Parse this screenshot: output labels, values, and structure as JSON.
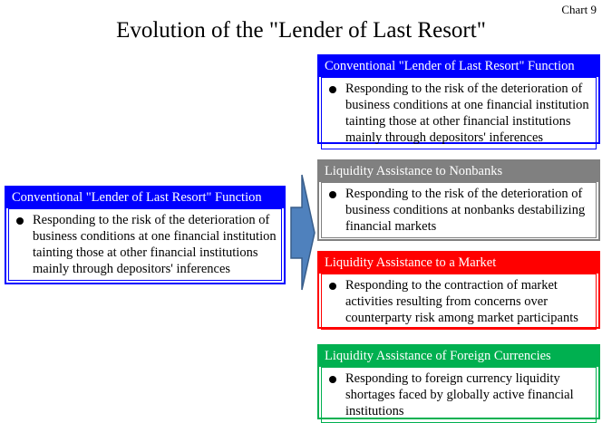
{
  "chart_label": "Chart 9",
  "title": "Evolution of the \"Lender of Last Resort\"",
  "left_box": {
    "header": "Conventional \"Lender of Last Resort\" Function",
    "text": "Responding to the risk of the deterioration of business conditions at one financial institution tainting those at other financial institutions mainly through depositors' inferences",
    "color": "#0000ff"
  },
  "right_boxes": [
    {
      "header": "Conventional \"Lender of Last Resort\" Function",
      "text": "Responding to the risk of the deterioration of business conditions at one financial institution tainting those at other financial institutions mainly through depositors' inferences",
      "color": "#0000ff"
    },
    {
      "header": "Liquidity Assistance to Nonbanks",
      "text": "Responding to the risk of the deterioration of business conditions at nonbanks destabilizing financial markets",
      "color": "#808080"
    },
    {
      "header": "Liquidity Assistance to a Market",
      "text": "Responding to the contraction of market activities resulting from concerns over counterparty risk among market participants",
      "color": "#ff0000"
    },
    {
      "header": "Liquidity Assistance of Foreign Currencies",
      "text": "Responding to foreign currency liquidity shortages faced by globally active financial institutions",
      "color": "#00b050"
    }
  ],
  "arrow_color": "#4f81bd"
}
